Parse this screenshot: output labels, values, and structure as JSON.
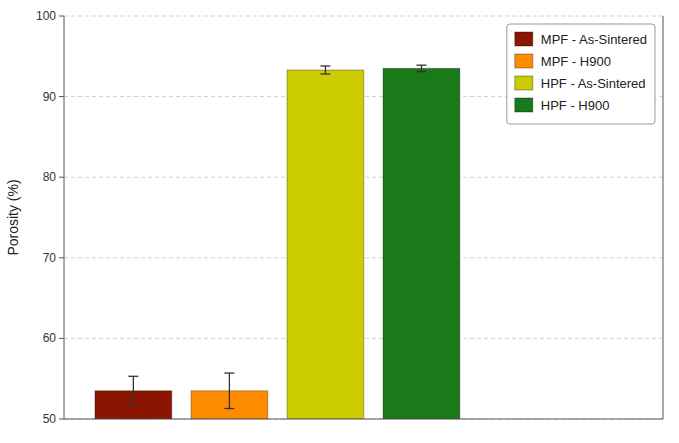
{
  "chart_data": {
    "type": "bar",
    "categories": [
      null
    ],
    "series": [
      {
        "name": "MPF - As-Sintered",
        "color": "#8B1500",
        "values": [
          53.5
        ],
        "errors": [
          1.8
        ]
      },
      {
        "name": "MPF - H900",
        "color": "#FF8C00",
        "values": [
          53.5
        ],
        "errors": [
          2.2
        ]
      },
      {
        "name": "HPF - As-Sintered",
        "color": "#CCCC00",
        "values": [
          93.3
        ],
        "errors": [
          0.5
        ]
      },
      {
        "name": "HPF - H900",
        "color": "#1A7A1A",
        "values": [
          93.5
        ],
        "errors": [
          0.4
        ]
      }
    ],
    "ylabel": "Porosity (%)",
    "ylim": [
      50,
      100
    ],
    "yticks": [
      50,
      60,
      70,
      80,
      90,
      100
    ],
    "grid": true,
    "legend": "upper right",
    "tick_labels": "y"
  }
}
